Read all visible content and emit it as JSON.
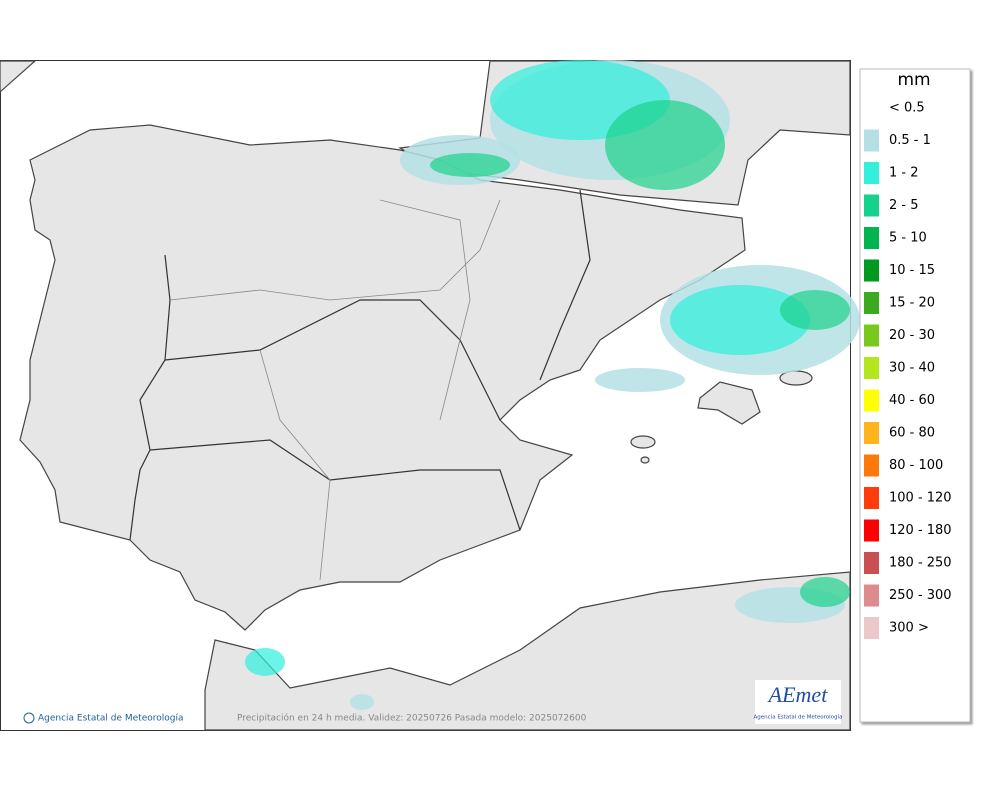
{
  "legend": {
    "title": "mm",
    "items": [
      {
        "label": "< 0.5",
        "color": "#ffffff"
      },
      {
        "label": "0.5 - 1",
        "color": "#b4e0e4"
      },
      {
        "label": "1 - 2",
        "color": "#32f0dc"
      },
      {
        "label": "2 - 5",
        "color": "#14d28c"
      },
      {
        "label": "5 - 10",
        "color": "#00b450"
      },
      {
        "label": "10 - 15",
        "color": "#009a1e"
      },
      {
        "label": "15 - 20",
        "color": "#3caa1e"
      },
      {
        "label": "20 - 30",
        "color": "#78c81e"
      },
      {
        "label": "30 - 40",
        "color": "#b4e61e"
      },
      {
        "label": "40 - 60",
        "color": "#ffff00"
      },
      {
        "label": "60 - 80",
        "color": "#ffb41e"
      },
      {
        "label": "80 - 100",
        "color": "#ff780a"
      },
      {
        "label": "100 - 120",
        "color": "#ff3c0a"
      },
      {
        "label": "120 - 180",
        "color": "#ff0000"
      },
      {
        "label": "180 - 250",
        "color": "#c85050"
      },
      {
        "label": "250 - 300",
        "color": "#dc8c8c"
      },
      {
        "label": "300 >",
        "color": "#ecc8c8"
      }
    ]
  },
  "footer": {
    "agency": "Agencia Estatal de Meteorología",
    "caption": "Precipitación en 24 h media. Validez: 20250726 Pasada modelo: 2025072600"
  },
  "logo": {
    "mark": "AEmet",
    "name": "Agencia Estatal de Meteorología"
  }
}
